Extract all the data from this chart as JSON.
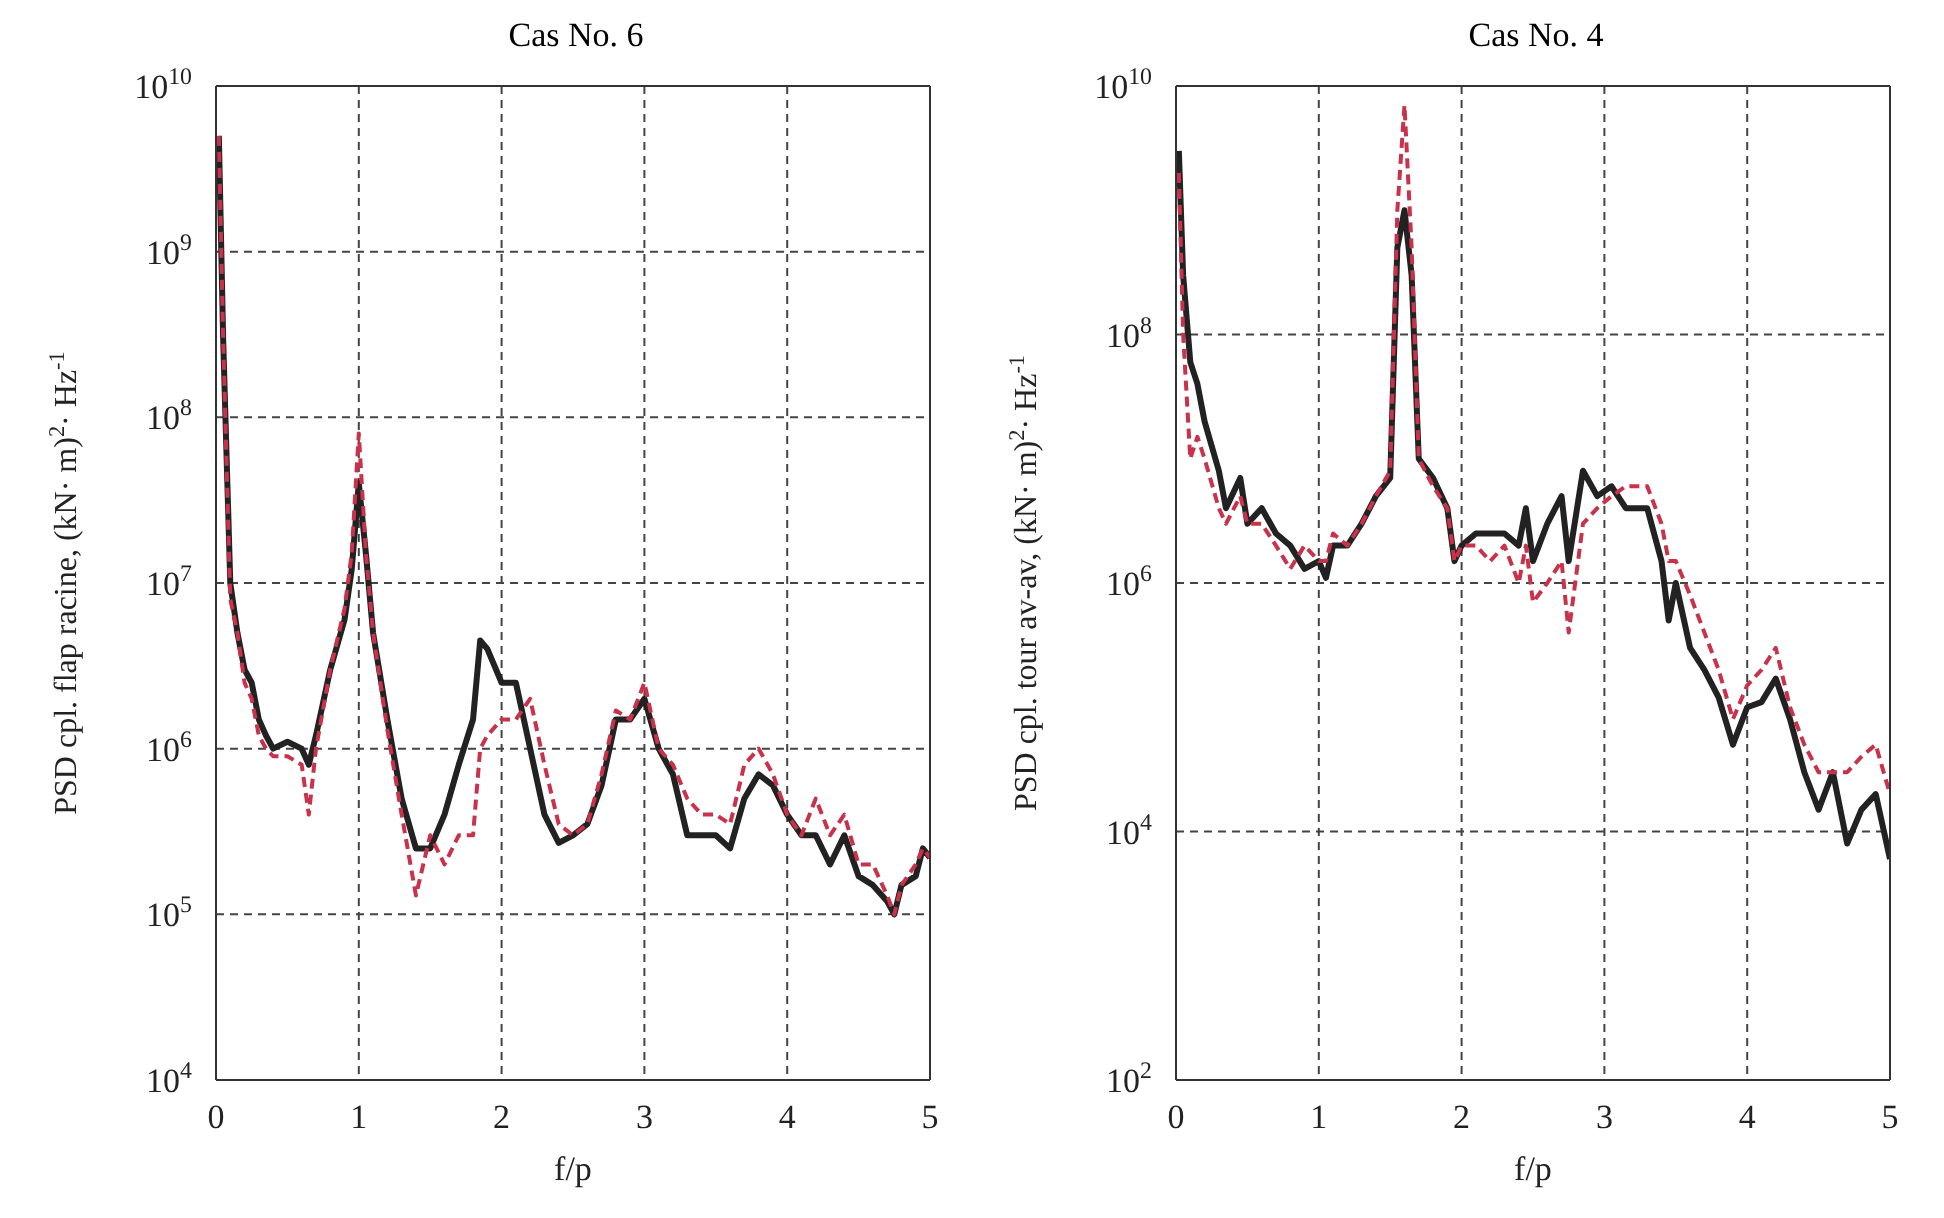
{
  "chart_data": [
    {
      "type": "line",
      "title": "Cas No. 6",
      "xlabel": "f/p",
      "ylabel": "PSD cpl. flap racine, (kN· m)$^{2}$· Hz$^{-1}$",
      "log": "y",
      "grid": true,
      "xlim": [
        0,
        5
      ],
      "xticks": [
        0,
        1,
        2,
        3,
        4,
        5
      ],
      "ylim": [
        10000,
        10000000000
      ],
      "yticks": [
        {
          "value": 10000,
          "label": "10$^{4}$"
        },
        {
          "value": 100000,
          "label": "10$^{5}$"
        },
        {
          "value": 1000000,
          "label": "10$^{6}$"
        },
        {
          "value": 10000000,
          "label": "10$^{7}$"
        },
        {
          "value": 100000000,
          "label": "10$^{8}$"
        },
        {
          "value": 1000000000,
          "label": "10$^{9}$"
        },
        {
          "value": 10000000000,
          "label": "10$^{10}$"
        }
      ],
      "x": [
        0.02,
        0.05,
        0.1,
        0.15,
        0.2,
        0.25,
        0.3,
        0.35,
        0.4,
        0.5,
        0.6,
        0.65,
        0.7,
        0.8,
        0.9,
        0.95,
        1.0,
        1.05,
        1.1,
        1.2,
        1.3,
        1.4,
        1.5,
        1.6,
        1.7,
        1.8,
        1.85,
        1.9,
        2.0,
        2.1,
        2.2,
        2.3,
        2.4,
        2.5,
        2.6,
        2.7,
        2.8,
        2.9,
        3.0,
        3.1,
        3.2,
        3.3,
        3.4,
        3.5,
        3.6,
        3.7,
        3.8,
        3.9,
        4.0,
        4.1,
        4.2,
        4.3,
        4.4,
        4.5,
        4.6,
        4.7,
        4.75,
        4.8,
        4.9,
        4.95,
        5.0
      ],
      "series": [
        {
          "color": "#222222",
          "line_style": "solid",
          "values": [
            5000000000.0,
            300000000.0,
            10000000.0,
            5000000.0,
            3000000.0,
            2500000.0,
            1500000.0,
            1200000.0,
            1000000.0,
            1100000.0,
            1000000.0,
            800000.0,
            1200000.0,
            3000000.0,
            6000000.0,
            12000000.0,
            40000000.0,
            15000000.0,
            5000000.0,
            1500000.0,
            500000.0,
            250000.0,
            250000.0,
            400000.0,
            800000.0,
            1500000.0,
            4500000.0,
            4000000.0,
            2500000.0,
            2500000.0,
            1000000.0,
            400000.0,
            270000.0,
            300000.0,
            350000.0,
            600000.0,
            1500000.0,
            1500000.0,
            2000000.0,
            1000000.0,
            700000.0,
            300000.0,
            300000.0,
            300000.0,
            250000.0,
            500000.0,
            700000.0,
            600000.0,
            400000.0,
            300000.0,
            300000.0,
            200000.0,
            300000.0,
            170000.0,
            150000.0,
            120000.0,
            100000.0,
            150000.0,
            170000.0,
            250000.0,
            220000.0
          ]
        },
        {
          "color": "#c8324a",
          "line_style": "dashed",
          "values": [
            5000000000.0,
            300000000.0,
            8000000.0,
            5000000.0,
            2500000.0,
            2000000.0,
            1200000.0,
            1000000.0,
            900000.0,
            900000.0,
            800000.0,
            400000.0,
            1000000.0,
            3000000.0,
            7000000.0,
            15000000.0,
            80000000.0,
            15000000.0,
            5000000.0,
            1300000.0,
            400000.0,
            130000.0,
            300000.0,
            200000.0,
            300000.0,
            300000.0,
            1000000.0,
            1200000.0,
            1500000.0,
            1500000.0,
            2000000.0,
            800000.0,
            350000.0,
            300000.0,
            350000.0,
            700000.0,
            1700000.0,
            1500000.0,
            2500000.0,
            1000000.0,
            800000.0,
            500000.0,
            400000.0,
            400000.0,
            350000.0,
            800000.0,
            1000000.0,
            700000.0,
            400000.0,
            300000.0,
            500000.0,
            300000.0,
            400000.0,
            200000.0,
            200000.0,
            130000.0,
            100000.0,
            150000.0,
            200000.0,
            250000.0,
            220000.0
          ]
        }
      ]
    },
    {
      "type": "line",
      "title": "Cas No. 4",
      "xlabel": "f/p",
      "ylabel": "PSD cpl. tour av-av, (kN· m)$^{2}$· Hz$^{-1}$",
      "log": "y",
      "grid": true,
      "xlim": [
        0,
        5
      ],
      "xticks": [
        0,
        1,
        2,
        3,
        4,
        5
      ],
      "ylim": [
        100,
        10000000000
      ],
      "yticks": [
        {
          "value": 100,
          "label": "10$^{2}$"
        },
        {
          "value": 10000,
          "label": "10$^{4}$"
        },
        {
          "value": 1000000,
          "label": "10$^{6}$"
        },
        {
          "value": 100000000,
          "label": "10$^{8}$"
        },
        {
          "value": 10000000000,
          "label": "10$^{10}$"
        }
      ],
      "x": [
        0.02,
        0.05,
        0.1,
        0.15,
        0.2,
        0.3,
        0.35,
        0.45,
        0.5,
        0.6,
        0.7,
        0.8,
        0.9,
        1.0,
        1.05,
        1.1,
        1.2,
        1.3,
        1.4,
        1.5,
        1.55,
        1.6,
        1.65,
        1.7,
        1.8,
        1.9,
        1.95,
        2.0,
        2.1,
        2.2,
        2.3,
        2.4,
        2.45,
        2.5,
        2.6,
        2.7,
        2.75,
        2.85,
        2.95,
        3.05,
        3.15,
        3.3,
        3.4,
        3.45,
        3.5,
        3.6,
        3.7,
        3.8,
        3.9,
        4.0,
        4.1,
        4.2,
        4.3,
        4.4,
        4.5,
        4.6,
        4.7,
        4.8,
        4.9,
        5.0
      ],
      "series": [
        {
          "color": "#222222",
          "line_style": "solid",
          "values": [
            3000000000.0,
            300000000.0,
            60000000.0,
            40000000.0,
            20000000.0,
            8000000.0,
            4000000.0,
            7000000.0,
            3000000.0,
            4000000.0,
            2500000.0,
            2000000.0,
            1300000.0,
            1500000.0,
            1100000.0,
            2000000.0,
            2000000.0,
            3000000.0,
            5000000.0,
            7000000.0,
            500000000.0,
            1000000000.0,
            300000000.0,
            10000000.0,
            7000000.0,
            4000000.0,
            1500000.0,
            2000000.0,
            2500000.0,
            2500000.0,
            2500000.0,
            2000000.0,
            4000000.0,
            1500000.0,
            3000000.0,
            5000000.0,
            1500000.0,
            8000000.0,
            5000000.0,
            6000000.0,
            4000000.0,
            4000000.0,
            1500000.0,
            500000.0,
            1000000.0,
            300000.0,
            200000.0,
            120000.0,
            50000.0,
            100000.0,
            110000.0,
            170000.0,
            80000.0,
            30000.0,
            15000.0,
            30000.0,
            8000.0,
            15000.0,
            20000.0,
            6000.0
          ]
        },
        {
          "color": "#c8324a",
          "line_style": "dashed",
          "values": [
            2000000000.0,
            100000000.0,
            10000000.0,
            15000000.0,
            10000000.0,
            4000000.0,
            3000000.0,
            5000000.0,
            3000000.0,
            3000000.0,
            2000000.0,
            1300000.0,
            2000000.0,
            1500000.0,
            1500000.0,
            2500000.0,
            2000000.0,
            3000000.0,
            5000000.0,
            8000000.0,
            1000000000.0,
            7000000000.0,
            500000000.0,
            10000000.0,
            6000000.0,
            4000000.0,
            1500000.0,
            2000000.0,
            2000000.0,
            1500000.0,
            2000000.0,
            1000000.0,
            2000000.0,
            700000.0,
            1000000.0,
            1500000.0,
            400000.0,
            3000000.0,
            4000000.0,
            5000000.0,
            6000000.0,
            6000000.0,
            3000000.0,
            1500000.0,
            1500000.0,
            800000.0,
            400000.0,
            200000.0,
            80000.0,
            150000.0,
            200000.0,
            300000.0,
            100000.0,
            50000.0,
            30000.0,
            30000.0,
            30000.0,
            40000.0,
            50000.0,
            20000.0
          ]
        }
      ]
    }
  ]
}
